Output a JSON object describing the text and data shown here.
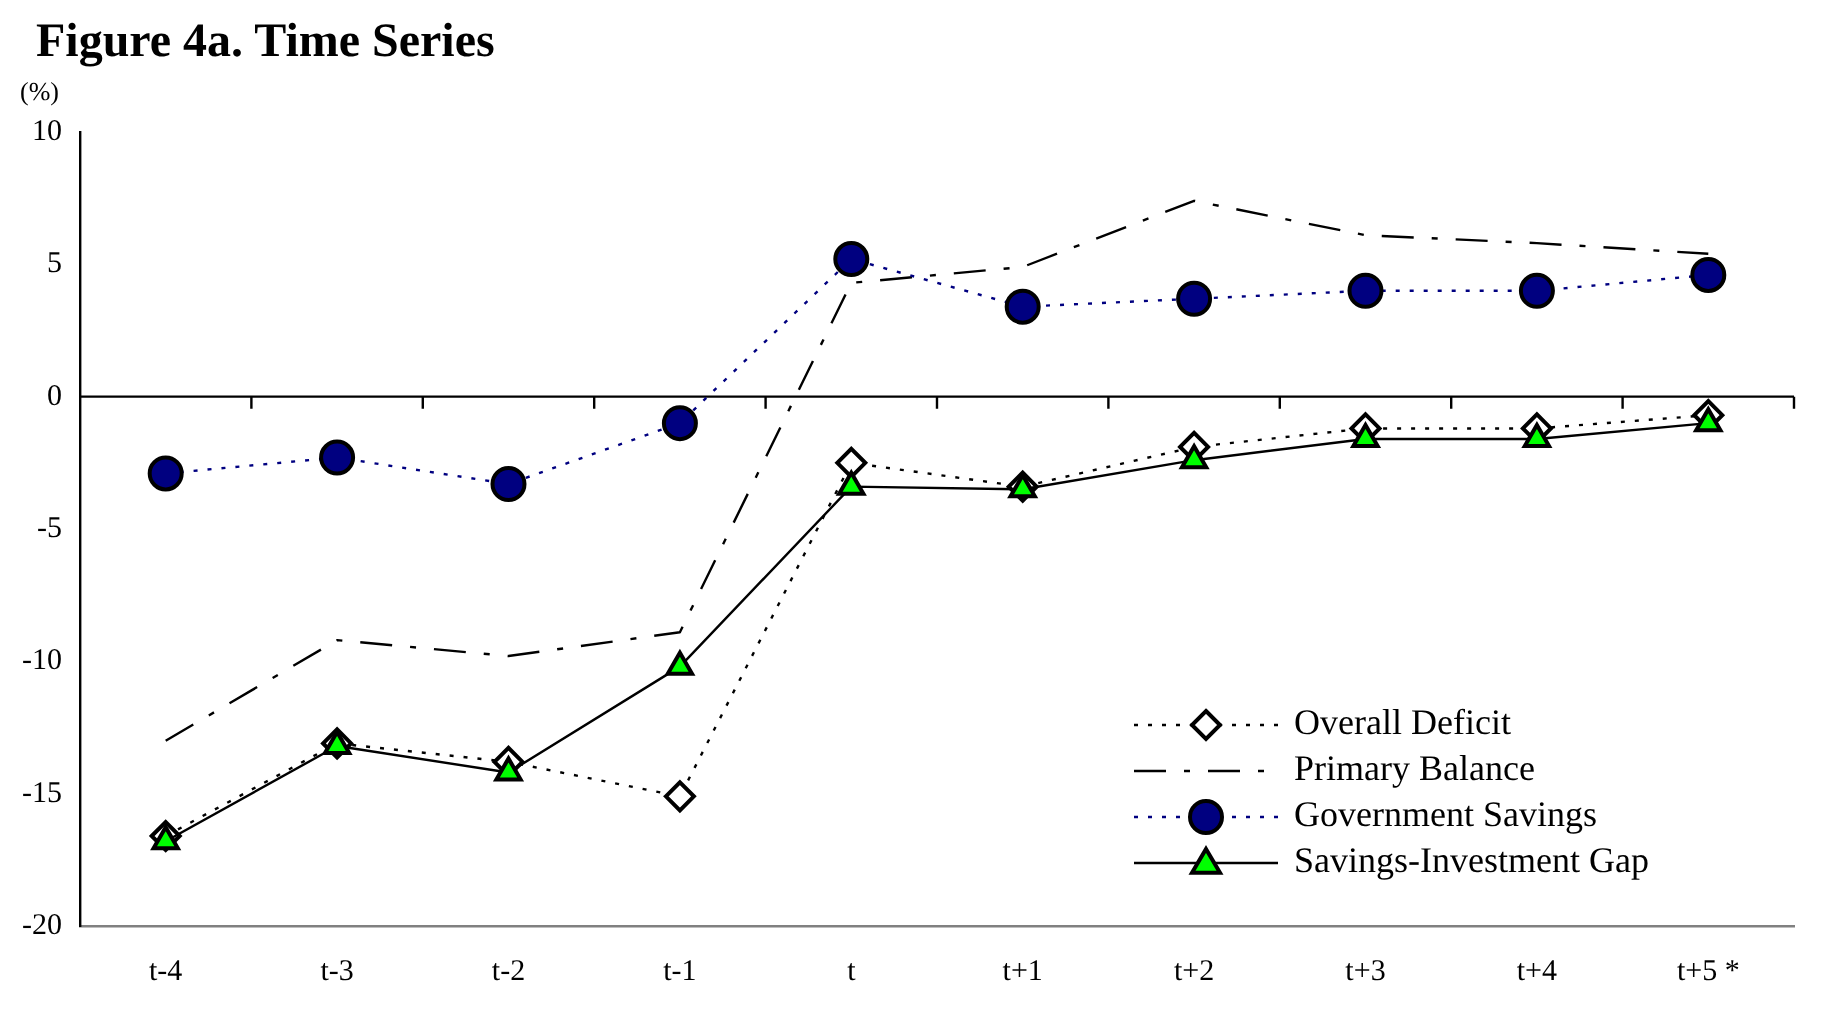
{
  "chart_data": {
    "type": "line",
    "title": "Figure 4a. Time Series",
    "ylabel": "(%)",
    "categories": [
      "t-4",
      "t-3",
      "t-2",
      "t-1",
      "t",
      "t+1",
      "t+2",
      "t+3",
      "t+4",
      "t+5 *"
    ],
    "series": [
      {
        "name": "Overall Deficit",
        "color": "#000000",
        "marker": "diamond",
        "line_style": "dotted",
        "values": [
          -16.6,
          -13.1,
          -13.8,
          -15.1,
          -2.5,
          -3.4,
          -1.9,
          -1.2,
          -1.2,
          -0.7
        ]
      },
      {
        "name": "Primary Balance",
        "color": "#000000",
        "marker": "none",
        "line_style": "dashed",
        "values": [
          -13.0,
          -9.2,
          -9.8,
          -8.9,
          4.3,
          4.9,
          7.4,
          6.1,
          5.8,
          5.4
        ]
      },
      {
        "name": "Government Savings",
        "color": "#000080",
        "marker": "circle",
        "line_style": "dotted",
        "values": [
          -2.9,
          -2.3,
          -3.3,
          -1.0,
          5.2,
          3.4,
          3.7,
          4.0,
          4.0,
          4.6
        ]
      },
      {
        "name": "Savings-Investment Gap",
        "color": "#00ff00",
        "marker": "triangle",
        "line_style": "solid",
        "values": [
          -16.8,
          -13.2,
          -14.2,
          -10.2,
          -3.4,
          -3.5,
          -2.4,
          -1.6,
          -1.6,
          -1.0
        ]
      }
    ],
    "ref_lines": [
      {
        "axis": "y",
        "value": 0
      }
    ],
    "ylim": [
      -20,
      10
    ],
    "yticks": [
      -20,
      -15,
      -10,
      -5,
      0,
      5,
      10
    ],
    "grid": false,
    "legend": "bottom right"
  }
}
